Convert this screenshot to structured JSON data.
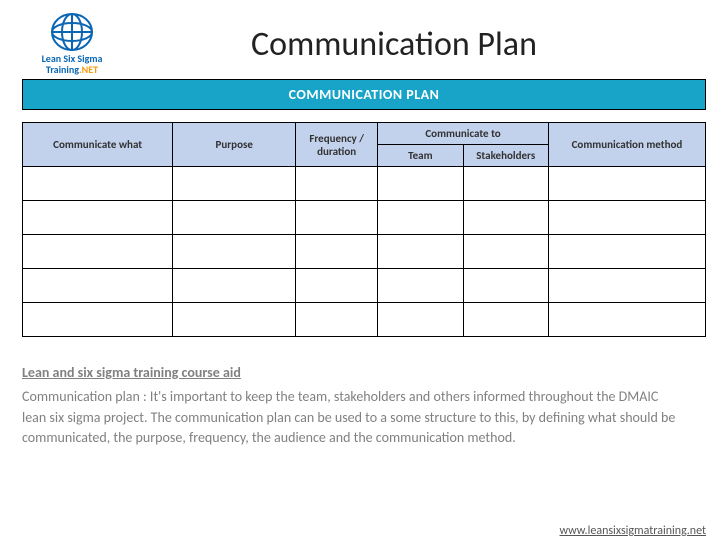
{
  "logo": {
    "line1": "Lean Six Sigma",
    "line2": "Training",
    "suffix": ".NET",
    "stroke_color": "#0a66b3"
  },
  "title": "Communication Plan",
  "banner": {
    "text": "COMMUNICATION PLAN",
    "bg": "#18a4c8",
    "fg": "#ffffff"
  },
  "table": {
    "header_bg": "#c2d1ec",
    "columns": {
      "what": "Communicate what",
      "purpose": "Purpose",
      "frequency": "Frequency / duration",
      "comm_to_group": "Communicate to",
      "team": "Team",
      "stakeholders": "Stakeholders",
      "method": "Communication method"
    },
    "rows": [
      [
        "",
        "",
        "",
        "",
        "",
        ""
      ],
      [
        "",
        "",
        "",
        "",
        "",
        ""
      ],
      [
        "",
        "",
        "",
        "",
        "",
        ""
      ],
      [
        "",
        "",
        "",
        "",
        "",
        ""
      ],
      [
        "",
        "",
        "",
        "",
        "",
        ""
      ]
    ]
  },
  "footer": {
    "heading": "Lean and six sigma training course aid",
    "body": "Communication plan : It's important to keep the team, stakeholders and others informed throughout the DMAIC lean six sigma project. The communication plan can be used to a some structure to this, by defining what should be communicated, the purpose, frequency, the audience and the communication method."
  },
  "link": "www.leansixsigmatraining.net"
}
